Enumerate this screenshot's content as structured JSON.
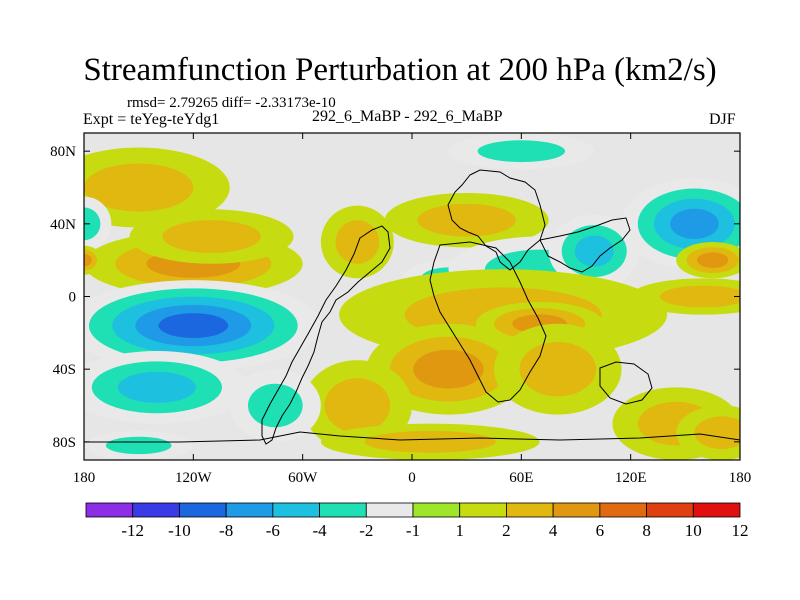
{
  "chart_data": {
    "type": "contour-map",
    "title": "Streamfunction Perturbation at 200 hPa (km2/s)",
    "stats_line": "rmsd= 2.79265 diff= -2.33173e-10",
    "experiment_label": "Expt = teYeg-teYdg1",
    "case_label": "292_6_MaBP - 292_6_MaBP",
    "season": "DJF",
    "x_axis": {
      "range": [
        -180,
        180
      ],
      "ticks": [
        {
          "value": -180,
          "label": "180"
        },
        {
          "value": -120,
          "label": "120W"
        },
        {
          "value": -60,
          "label": "60W"
        },
        {
          "value": 0,
          "label": "0"
        },
        {
          "value": 60,
          "label": "60E"
        },
        {
          "value": 120,
          "label": "120E"
        },
        {
          "value": 180,
          "label": "180"
        }
      ]
    },
    "y_axis": {
      "range": [
        -90,
        90
      ],
      "ticks": [
        {
          "value": 80,
          "label": "80N"
        },
        {
          "value": 40,
          "label": "40N"
        },
        {
          "value": 0,
          "label": "0"
        },
        {
          "value": -40,
          "label": "40S"
        },
        {
          "value": -80,
          "label": "80S"
        }
      ]
    },
    "colorbar": {
      "boxes": [
        "#8b2ee6",
        "#3a3ae6",
        "#1b67e0",
        "#1e9ae6",
        "#1ec0e0",
        "#1ee0b4",
        "#e9e9e9",
        "#9ee62a",
        "#c6dc10",
        "#e0b810",
        "#e09810",
        "#e06a10",
        "#e04010",
        "#e01010"
      ],
      "labels": [
        "-12",
        "-10",
        "-8",
        "-6",
        "-4",
        "-2",
        "-1",
        "1",
        "2",
        "4",
        "6",
        "8",
        "10",
        "12"
      ]
    },
    "anomalies": [
      {
        "lon": -150,
        "lat": 60,
        "value": 3,
        "rx": 50,
        "ry": 22
      },
      {
        "lon": -120,
        "lat": 18,
        "value": 4,
        "rx": 60,
        "ry": 18
      },
      {
        "lon": -110,
        "lat": 33,
        "value": 3,
        "rx": 45,
        "ry": 15
      },
      {
        "lon": 30,
        "lat": 42,
        "value": 2,
        "rx": 45,
        "ry": 15
      },
      {
        "lon": -30,
        "lat": 30,
        "value": 2,
        "rx": 20,
        "ry": 20
      },
      {
        "lon": 60,
        "lat": 80,
        "value": -2,
        "rx": 40,
        "ry": 10
      },
      {
        "lon": 20,
        "lat": 10,
        "value": -2,
        "rx": 25,
        "ry": 10
      },
      {
        "lon": 70,
        "lat": 15,
        "value": -3,
        "rx": 50,
        "ry": 18
      },
      {
        "lon": 100,
        "lat": 25,
        "value": -4,
        "rx": 25,
        "ry": 20
      },
      {
        "lon": 155,
        "lat": 40,
        "value": -7,
        "rx": 40,
        "ry": 25
      },
      {
        "lon": -180,
        "lat": 40,
        "value": -3,
        "rx": 15,
        "ry": 15
      },
      {
        "lon": 165,
        "lat": 20,
        "value": 5,
        "rx": 20,
        "ry": 10
      },
      {
        "lon": -180,
        "lat": 20,
        "value": 4,
        "rx": 10,
        "ry": 8
      },
      {
        "lon": 160,
        "lat": 0,
        "value": 2,
        "rx": 40,
        "ry": 10
      },
      {
        "lon": -120,
        "lat": -16,
        "value": -9,
        "rx": 70,
        "ry": 25
      },
      {
        "lon": -140,
        "lat": -50,
        "value": -4,
        "rx": 50,
        "ry": 20
      },
      {
        "lon": -150,
        "lat": -82,
        "value": -2,
        "rx": 30,
        "ry": 8
      },
      {
        "lon": 50,
        "lat": -10,
        "value": 3,
        "rx": 90,
        "ry": 25
      },
      {
        "lon": 70,
        "lat": -15,
        "value": 5,
        "rx": 35,
        "ry": 12
      },
      {
        "lon": 20,
        "lat": -40,
        "value": 4,
        "rx": 45,
        "ry": 25
      },
      {
        "lon": 80,
        "lat": -40,
        "value": 3,
        "rx": 35,
        "ry": 25
      },
      {
        "lon": -30,
        "lat": -60,
        "value": 2,
        "rx": 30,
        "ry": 25
      },
      {
        "lon": 10,
        "lat": -80,
        "value": 2,
        "rx": 60,
        "ry": 10
      },
      {
        "lon": 145,
        "lat": -70,
        "value": 2,
        "rx": 35,
        "ry": 20
      },
      {
        "lon": 170,
        "lat": -75,
        "value": 3,
        "rx": 25,
        "ry": 15
      },
      {
        "lon": -75,
        "lat": -60,
        "value": -2,
        "rx": 25,
        "ry": 20
      }
    ]
  }
}
